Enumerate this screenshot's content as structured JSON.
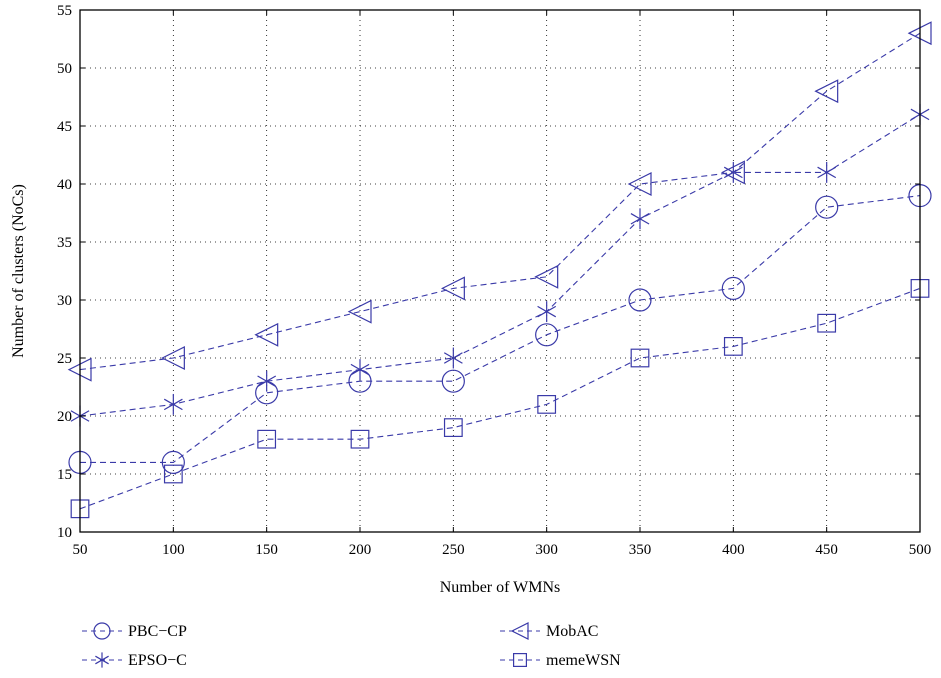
{
  "chart_data": {
    "type": "line",
    "title": "",
    "xlabel": "Number of WMNs",
    "ylabel": "Number of clusters (NoCs)",
    "x": [
      50,
      100,
      150,
      200,
      250,
      300,
      350,
      400,
      450,
      500
    ],
    "xlim": [
      50,
      500
    ],
    "ylim": [
      10,
      55
    ],
    "xticks": [
      "50",
      "100",
      "150",
      "200",
      "250",
      "300",
      "350",
      "400",
      "450",
      "500"
    ],
    "yticks": [
      "10",
      "15",
      "20",
      "25",
      "30",
      "35",
      "40",
      "45",
      "50",
      "55"
    ],
    "grid": true,
    "legend_position": "bottom",
    "line_color": "#3a3aa8",
    "series": [
      {
        "name": "PBC−CP",
        "marker": "circle",
        "values": [
          16,
          16,
          22,
          23,
          23,
          27,
          30,
          31,
          38,
          39
        ]
      },
      {
        "name": "EPSO−C",
        "marker": "asterisk",
        "values": [
          20,
          21,
          23,
          24,
          25,
          29,
          37,
          41,
          41,
          46
        ]
      },
      {
        "name": "MobAC",
        "marker": "triangle-left",
        "values": [
          24,
          25,
          27,
          29,
          31,
          32,
          40,
          41,
          48,
          53
        ]
      },
      {
        "name": "memeWSN",
        "marker": "square",
        "values": [
          12,
          15,
          18,
          18,
          19,
          21,
          25,
          26,
          28,
          31
        ]
      }
    ]
  }
}
